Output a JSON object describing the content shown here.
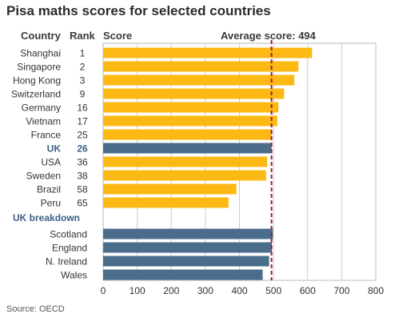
{
  "title": "Pisa maths scores for selected countries",
  "headers": {
    "country": "Country",
    "rank": "Rank",
    "score": "Score"
  },
  "average_label": "Average score: 494",
  "source": "Source: OECD",
  "colors": {
    "country_bar": "#FDB913",
    "uk_bar": "#4A6D8C",
    "highlight_text": "#3D5F85",
    "average_line": "#A01C2B",
    "grid": "#CCCCCC",
    "plot_border": "#BBBBBB"
  },
  "chart_data": {
    "type": "bar",
    "orientation": "horizontal",
    "title": "Pisa maths scores for selected countries",
    "xlabel": "Score",
    "xlim": [
      0,
      800
    ],
    "xticks": [
      0,
      100,
      200,
      300,
      400,
      500,
      600,
      700,
      800
    ],
    "average": 494,
    "grid": true,
    "countries": [
      {
        "name": "Shanghai",
        "rank": "1",
        "score": 613
      },
      {
        "name": "Singapore",
        "rank": "2",
        "score": 573
      },
      {
        "name": "Hong Kong",
        "rank": "3",
        "score": 561
      },
      {
        "name": "Switzerland",
        "rank": "9",
        "score": 531
      },
      {
        "name": "Germany",
        "rank": "16",
        "score": 514
      },
      {
        "name": "Vietnam",
        "rank": "17",
        "score": 511
      },
      {
        "name": "France",
        "rank": "25",
        "score": 495
      },
      {
        "name": "UK",
        "rank": "26",
        "score": 494,
        "highlight": true
      },
      {
        "name": "USA",
        "rank": "36",
        "score": 481
      },
      {
        "name": "Sweden",
        "rank": "38",
        "score": 478
      },
      {
        "name": "Brazil",
        "rank": "58",
        "score": 391
      },
      {
        "name": "Peru",
        "rank": "65",
        "score": 368
      }
    ],
    "breakdown_label": "UK breakdown",
    "breakdown": [
      {
        "name": "Scotland",
        "score": 498
      },
      {
        "name": "England",
        "score": 495
      },
      {
        "name": "N. Ireland",
        "score": 487
      },
      {
        "name": "Wales",
        "score": 468
      }
    ]
  }
}
